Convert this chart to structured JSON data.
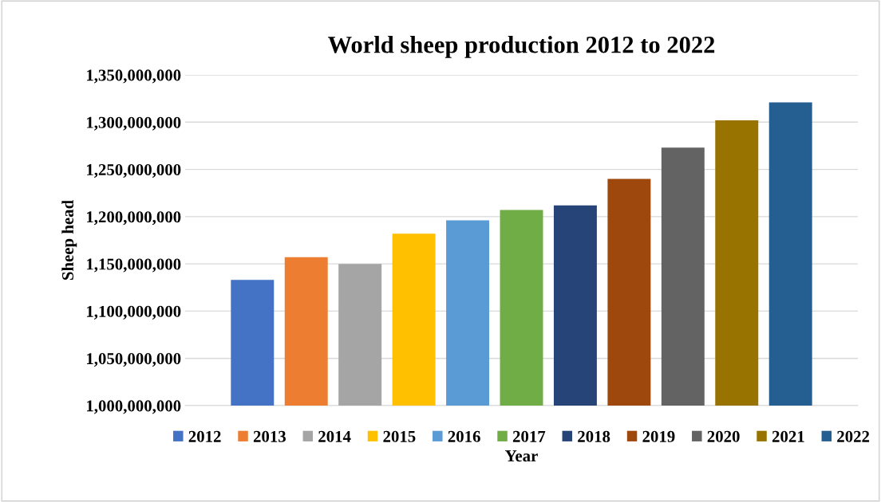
{
  "chart_data": {
    "type": "bar",
    "title": "World sheep production 2012 to 2022",
    "xlabel": "Year",
    "ylabel": "Sheep head",
    "categories": [
      null
    ],
    "series": [
      {
        "name": "2012",
        "color": "#4472c4",
        "values": [
          1133000000
        ]
      },
      {
        "name": "2013",
        "color": "#ed7d31",
        "values": [
          1157000000
        ]
      },
      {
        "name": "2014",
        "color": "#a5a5a5",
        "values": [
          1150000000
        ]
      },
      {
        "name": "2015",
        "color": "#ffc000",
        "values": [
          1182000000
        ]
      },
      {
        "name": "2016",
        "color": "#5b9bd5",
        "values": [
          1196000000
        ]
      },
      {
        "name": "2017",
        "color": "#70ad47",
        "values": [
          1207000000
        ]
      },
      {
        "name": "2018",
        "color": "#264478",
        "values": [
          1212000000
        ]
      },
      {
        "name": "2019",
        "color": "#9e480e",
        "values": [
          1240000000
        ]
      },
      {
        "name": "2020",
        "color": "#636363",
        "values": [
          1273000000
        ]
      },
      {
        "name": "2021",
        "color": "#997300",
        "values": [
          1302000000
        ]
      },
      {
        "name": "2022",
        "color": "#255e91",
        "values": [
          1321000000
        ]
      }
    ],
    "ylim": [
      1000000000,
      1350000000
    ],
    "yticks": [
      {
        "value": 1000000000,
        "label": "1,000,000,000"
      },
      {
        "value": 1050000000,
        "label": "1,050,000,000"
      },
      {
        "value": 1100000000,
        "label": "1,100,000,000"
      },
      {
        "value": 1150000000,
        "label": "1,150,000,000"
      },
      {
        "value": 1200000000,
        "label": "1,200,000,000"
      },
      {
        "value": 1250000000,
        "label": "1,250,000,000"
      },
      {
        "value": 1300000000,
        "label": "1,300,000,000"
      },
      {
        "value": 1350000000,
        "label": "1,350,000,000"
      }
    ],
    "grid": "y",
    "legend": "bottom",
    "tick_labels": "y"
  }
}
